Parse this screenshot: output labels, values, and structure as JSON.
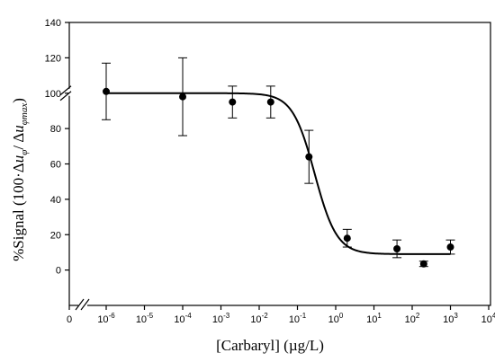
{
  "chart_data": {
    "type": "scatter",
    "xlabel": "[Carbaryl] (µg/L)",
    "ylabel": "%Signal (100·Δuφ/ Δuφmax)",
    "ylabel_parts": {
      "pre": "%Signal (100·Δ",
      "u1": "u",
      "sub1": "φ",
      "mid": "/ Δ",
      "u2": "u",
      "sub2": "φmax",
      "post": ")"
    },
    "x_scale": "log",
    "x_break": true,
    "y_break": true,
    "ylim": [
      -20,
      140
    ],
    "y_ticks": [
      0,
      20,
      40,
      60,
      80,
      100,
      120,
      140
    ],
    "x_tick_labels": [
      {
        "base": "0",
        "exp": "",
        "zero": true
      },
      {
        "base": "10",
        "exp": "-6",
        "pow": -6
      },
      {
        "base": "10",
        "exp": "-5",
        "pow": -5
      },
      {
        "base": "10",
        "exp": "-4",
        "pow": -4
      },
      {
        "base": "10",
        "exp": "-3",
        "pow": -3
      },
      {
        "base": "10",
        "exp": "-2",
        "pow": -2
      },
      {
        "base": "10",
        "exp": "-1",
        "pow": -1
      },
      {
        "base": "10",
        "exp": "0",
        "pow": 0
      },
      {
        "base": "10",
        "exp": "1",
        "pow": 1
      },
      {
        "base": "10",
        "exp": "2",
        "pow": 2
      },
      {
        "base": "10",
        "exp": "3",
        "pow": 3
      },
      {
        "base": "10",
        "exp": "4",
        "pow": 4
      }
    ],
    "series": [
      {
        "points": [
          {
            "x": 1e-06,
            "y": 101,
            "err": 16
          },
          {
            "x": 0.0001,
            "y": 98,
            "err": 22
          },
          {
            "x": 0.002,
            "y": 95,
            "err": 9
          },
          {
            "x": 0.02,
            "y": 95,
            "err": 9
          },
          {
            "x": 0.2,
            "y": 64,
            "err": 15
          },
          {
            "x": 2,
            "y": 18,
            "err": 5
          },
          {
            "x": 40,
            "y": 12,
            "err": 5
          },
          {
            "x": 200,
            "y": 3.5,
            "err": 1.5
          },
          {
            "x": 1000,
            "y": 13,
            "err": 4
          }
        ]
      }
    ],
    "fit_curve": {
      "top": 100,
      "bottom": 9,
      "log_ic50": -0.55,
      "hill": 1.5,
      "x_range": [
        1e-06,
        1000
      ]
    },
    "grid": false,
    "legend": "none"
  }
}
